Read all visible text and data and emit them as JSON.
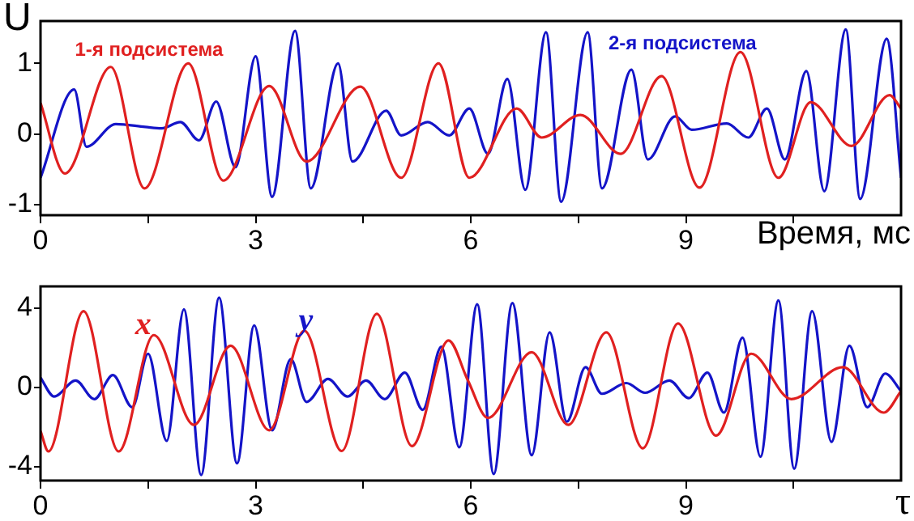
{
  "chart_data": [
    {
      "type": "line",
      "xlabel": "Время, мс",
      "ylabel": "U",
      "xlim": [
        0,
        12
      ],
      "ylim": [
        -1.15,
        1.6
      ],
      "xticks": [
        0,
        {
          "value": 1.5,
          "label": null
        },
        3,
        {
          "value": 4.5,
          "label": null
        },
        6,
        {
          "value": 7.5,
          "label": null
        },
        9,
        {
          "value": 10.5,
          "label": null
        }
      ],
      "yticks": [
        -1,
        0,
        1
      ],
      "grid": false,
      "legend": false,
      "marker": "none",
      "line_style": "solid",
      "series": [
        {
          "name": "1-я подсистема",
          "color": "#e02020",
          "x": [
            0,
            0.34,
            0.98,
            1.45,
            2.06,
            2.55,
            3.19,
            3.71,
            4.46,
            5.03,
            5.55,
            5.98,
            6.64,
            6.99,
            7.53,
            8.09,
            8.66,
            9.19,
            9.76,
            10.29,
            10.74,
            11.31,
            11.84,
            12
          ],
          "values": [
            0.44,
            -0.56,
            0.95,
            -0.77,
            1.0,
            -0.66,
            0.68,
            -0.39,
            0.67,
            -0.62,
            1.0,
            -0.62,
            0.36,
            -0.05,
            0.27,
            -0.28,
            0.82,
            -0.76,
            1.16,
            -0.62,
            0.45,
            -0.17,
            0.55,
            0.36
          ]
        },
        {
          "name": "2-я подсистема",
          "color": "#1414c8",
          "x": [
            0,
            0.47,
            0.64,
            1.05,
            1.46,
            1.69,
            1.95,
            2.21,
            2.45,
            2.72,
            3.0,
            3.23,
            3.55,
            3.77,
            4.15,
            4.35,
            4.82,
            5.03,
            5.4,
            5.7,
            5.98,
            6.24,
            6.51,
            6.76,
            7.05,
            7.26,
            7.63,
            7.83,
            8.24,
            8.47,
            8.85,
            9.08,
            9.57,
            9.87,
            10.13,
            10.38,
            10.68,
            10.93,
            11.23,
            11.43,
            11.8,
            12
          ],
          "values": [
            -0.62,
            0.63,
            -0.18,
            0.14,
            0.1,
            0.08,
            0.17,
            -0.09,
            0.46,
            -0.47,
            1.1,
            -0.89,
            1.46,
            -0.77,
            1.0,
            -0.39,
            0.33,
            -0.02,
            0.17,
            -0.02,
            0.36,
            -0.28,
            0.78,
            -0.79,
            1.44,
            -0.96,
            1.44,
            -0.77,
            0.91,
            -0.36,
            0.25,
            0.06,
            0.15,
            -0.05,
            0.36,
            -0.36,
            0.89,
            -0.81,
            1.48,
            -0.92,
            1.35,
            -0.62
          ]
        }
      ]
    },
    {
      "type": "line",
      "xlabel": "τ",
      "xlim": [
        0,
        12
      ],
      "ylim": [
        -4.7,
        5.1
      ],
      "xticks": [
        0,
        {
          "value": 1.5,
          "label": null
        },
        3,
        {
          "value": 4.5,
          "label": null
        },
        6,
        {
          "value": 7.5,
          "label": null
        },
        9,
        {
          "value": 10.5,
          "label": null
        }
      ],
      "yticks": [
        -4,
        0,
        4
      ],
      "grid": false,
      "legend": false,
      "marker": "none",
      "line_style": "solid",
      "series": [
        {
          "name": "x",
          "color": "#e02020",
          "x": [
            0,
            0.11,
            0.6,
            1.09,
            1.58,
            2.14,
            2.65,
            3.19,
            3.68,
            4.2,
            4.69,
            5.18,
            5.69,
            5.96,
            6.24,
            6.85,
            7.36,
            7.89,
            8.4,
            8.89,
            9.42,
            9.91,
            10.47,
            11.19,
            11.76,
            12
          ],
          "values": [
            -2.2,
            -3.23,
            3.85,
            -3.23,
            2.64,
            -1.89,
            2.1,
            -2.16,
            2.86,
            -3.21,
            3.72,
            -2.96,
            2.37,
            0.35,
            -1.54,
            1.78,
            -1.89,
            2.78,
            -3.07,
            3.23,
            -2.43,
            1.7,
            -0.59,
            1.02,
            -1.27,
            -0.19
          ]
        },
        {
          "name": "y",
          "color": "#1414c8",
          "x": [
            0,
            0.19,
            0.49,
            0.75,
            1.01,
            1.28,
            1.5,
            1.76,
            2.0,
            2.24,
            2.49,
            2.74,
            2.98,
            3.23,
            3.49,
            3.71,
            4.01,
            4.28,
            4.54,
            4.8,
            5.08,
            5.33,
            5.59,
            5.84,
            6.09,
            6.32,
            6.58,
            6.85,
            7.1,
            7.34,
            7.6,
            7.83,
            8.17,
            8.43,
            8.77,
            9.04,
            9.3,
            9.53,
            9.79,
            10.04,
            10.29,
            10.51,
            10.76,
            11.03,
            11.28,
            11.53,
            11.78,
            12
          ],
          "values": [
            0.49,
            -0.46,
            0.35,
            -0.59,
            0.62,
            -1.0,
            1.7,
            -2.7,
            3.94,
            -4.42,
            4.53,
            -3.83,
            3.13,
            -2.16,
            1.43,
            -0.73,
            0.43,
            -0.46,
            0.35,
            -0.59,
            0.75,
            -1.13,
            2.05,
            -3.02,
            4.2,
            -4.37,
            4.26,
            -3.42,
            2.78,
            -1.73,
            1.02,
            -0.32,
            0.22,
            -0.27,
            0.35,
            -0.54,
            0.75,
            -1.27,
            2.51,
            -3.5,
            4.39,
            -4.1,
            3.85,
            -2.75,
            2.1,
            -1.0,
            0.7,
            -0.19
          ]
        }
      ]
    }
  ]
}
